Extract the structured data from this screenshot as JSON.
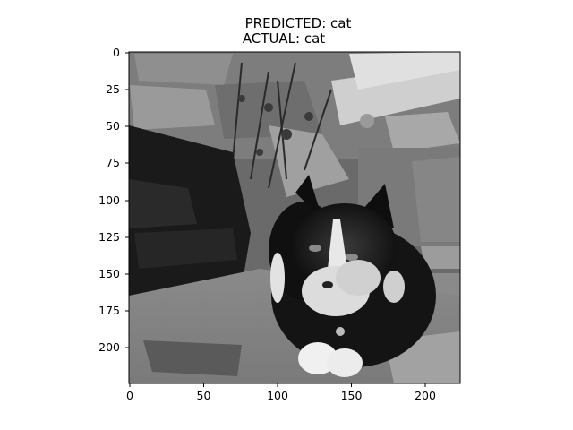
{
  "title": {
    "predicted": "PREDICTED: cat",
    "actual": "ACTUAL: cat"
  },
  "image": {
    "subject": "black-and-white cat lying on a stone ledge",
    "colormap": "grayscale"
  },
  "axes": {
    "xlim": [
      0,
      224
    ],
    "ylim_inverted": [
      224,
      0
    ],
    "x_ticks": [
      "0",
      "50",
      "100",
      "150",
      "200"
    ],
    "y_ticks": [
      "0",
      "25",
      "50",
      "75",
      "100",
      "125",
      "150",
      "175",
      "200"
    ],
    "frame_color": "#000000"
  }
}
